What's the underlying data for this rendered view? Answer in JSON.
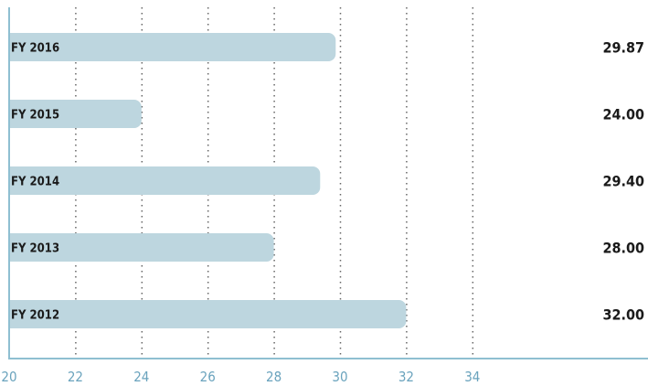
{
  "chart_data": {
    "type": "bar",
    "orientation": "horizontal",
    "categories": [
      "FY 2016",
      "FY 2015",
      "FY 2014",
      "FY 2013",
      "FY 2012"
    ],
    "values": [
      29.87,
      24.0,
      29.4,
      28.0,
      32.0
    ],
    "value_labels": [
      "29.87",
      "24.00",
      "29.40",
      "28.00",
      "32.00"
    ],
    "xlim": [
      20,
      36
    ],
    "xticks": [
      "20",
      "22",
      "24",
      "26",
      "28",
      "30",
      "32",
      "34"
    ],
    "grid": "vertical dotted",
    "title": "",
    "xlabel": "",
    "ylabel": "",
    "colors": {
      "bar": "#bdd6df",
      "axis": "#8fbfd1",
      "tick_text": "#6aa3bd",
      "grid": "#666666",
      "text": "#1a1a1a"
    }
  }
}
